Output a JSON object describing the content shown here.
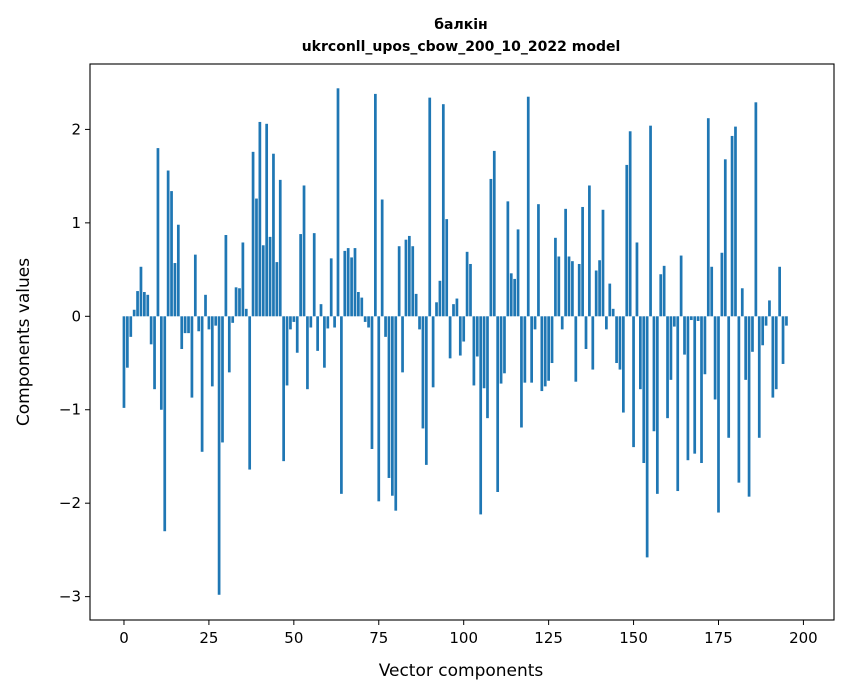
{
  "chart_data": {
    "type": "bar",
    "title": "балкін",
    "subtitle": "ukrconll_upos_cbow_200_10_2022 model",
    "xlabel": "Vector components",
    "ylabel": "Components values",
    "xlim": [
      -10,
      209
    ],
    "ylim": [
      -3.25,
      2.7
    ],
    "xticks": [
      0,
      25,
      50,
      75,
      100,
      125,
      150,
      175,
      200
    ],
    "xtick_labels": [
      "0",
      "25",
      "50",
      "75",
      "100",
      "125",
      "150",
      "175",
      "200"
    ],
    "yticks": [
      -3,
      -2,
      -1,
      0,
      1,
      2
    ],
    "ytick_labels": [
      "−3",
      "−2",
      "−1",
      "0",
      "1",
      "2"
    ],
    "grid": false,
    "color": "#1f77b4",
    "values": [
      -0.98,
      -0.55,
      -0.22,
      0.07,
      0.27,
      0.53,
      0.26,
      0.23,
      -0.3,
      -0.78,
      1.8,
      -1.0,
      -2.3,
      1.56,
      1.34,
      0.57,
      0.98,
      -0.35,
      -0.18,
      -0.18,
      -0.87,
      0.66,
      -0.16,
      -1.45,
      0.23,
      -0.14,
      -0.75,
      -0.1,
      -2.98,
      -1.35,
      0.87,
      -0.6,
      -0.07,
      0.31,
      0.3,
      0.79,
      0.08,
      -1.64,
      1.76,
      1.26,
      2.08,
      0.76,
      2.06,
      0.85,
      1.74,
      0.58,
      1.46,
      -1.55,
      -0.74,
      -0.14,
      -0.06,
      -0.39,
      0.88,
      1.4,
      -0.78,
      -0.12,
      0.89,
      -0.37,
      0.13,
      -0.55,
      -0.13,
      0.62,
      -0.12,
      2.44,
      -1.9,
      0.7,
      0.73,
      0.63,
      0.73,
      0.26,
      0.2,
      -0.06,
      -0.12,
      -1.42,
      2.38,
      -1.98,
      1.25,
      -0.22,
      -1.73,
      -1.92,
      -2.08,
      0.75,
      -0.6,
      0.82,
      0.86,
      0.75,
      0.24,
      -0.14,
      -1.2,
      -1.59,
      2.34,
      -0.76,
      0.15,
      0.38,
      2.27,
      1.04,
      -0.45,
      0.13,
      0.19,
      -0.42,
      -0.27,
      0.69,
      0.56,
      -0.74,
      -0.43,
      -2.12,
      -0.77,
      -1.09,
      1.47,
      1.77,
      -1.88,
      -0.72,
      -0.61,
      1.23,
      0.46,
      0.4,
      0.93,
      -1.19,
      -0.71,
      2.35,
      -0.71,
      -0.14,
      1.2,
      -0.8,
      -0.75,
      -0.69,
      -0.5,
      0.84,
      0.64,
      -0.14,
      1.15,
      0.64,
      0.59,
      -0.7,
      0.56,
      1.17,
      -0.35,
      1.4,
      -0.57,
      0.49,
      0.6,
      1.14,
      -0.14,
      0.35,
      0.08,
      -0.5,
      -0.57,
      -1.03,
      1.62,
      1.98,
      -1.4,
      0.79,
      -0.78,
      -1.57,
      -2.58,
      2.04,
      -1.23,
      -1.9,
      0.45,
      0.54,
      -1.09,
      -0.68,
      -0.11,
      -1.87,
      0.65,
      -0.41,
      -1.54,
      -0.04,
      -1.47,
      -0.05,
      -1.57,
      -0.62,
      2.12,
      0.53,
      -0.89,
      -2.1,
      0.68,
      1.68,
      -1.3,
      1.93,
      2.03,
      -1.78,
      0.3,
      -0.68,
      -1.93,
      -0.38,
      2.29,
      -1.3,
      -0.31,
      -0.1,
      0.17,
      -0.87,
      -0.78,
      0.53,
      -0.51,
      -0.1
    ]
  }
}
